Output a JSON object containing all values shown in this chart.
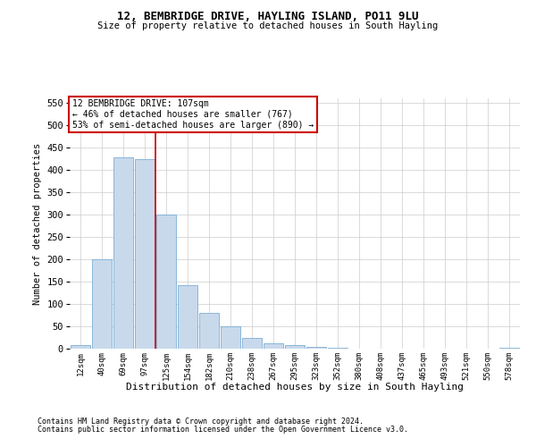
{
  "title": "12, BEMBRIDGE DRIVE, HAYLING ISLAND, PO11 9LU",
  "subtitle": "Size of property relative to detached houses in South Hayling",
  "xlabel": "Distribution of detached houses by size in South Hayling",
  "ylabel": "Number of detached properties",
  "footnote1": "Contains HM Land Registry data © Crown copyright and database right 2024.",
  "footnote2": "Contains public sector information licensed under the Open Government Licence v3.0.",
  "bar_labels": [
    "12sqm",
    "40sqm",
    "69sqm",
    "97sqm",
    "125sqm",
    "154sqm",
    "182sqm",
    "210sqm",
    "238sqm",
    "267sqm",
    "295sqm",
    "323sqm",
    "352sqm",
    "380sqm",
    "408sqm",
    "437sqm",
    "465sqm",
    "493sqm",
    "521sqm",
    "550sqm",
    "578sqm"
  ],
  "bar_values": [
    8,
    200,
    428,
    425,
    300,
    143,
    80,
    50,
    24,
    12,
    8,
    5,
    2,
    0,
    0,
    0,
    0,
    0,
    0,
    0,
    3
  ],
  "bar_color": "#c9d9ec",
  "bar_edge_color": "#7bafd4",
  "property_line_x": 3.5,
  "annotation_text": "12 BEMBRIDGE DRIVE: 107sqm\n← 46% of detached houses are smaller (767)\n53% of semi-detached houses are larger (890) →",
  "annotation_box_color": "#ffffff",
  "annotation_box_edge": "#cc0000",
  "line_color": "#cc0000",
  "ylim": [
    0,
    560
  ],
  "yticks": [
    0,
    50,
    100,
    150,
    200,
    250,
    300,
    350,
    400,
    450,
    500,
    550
  ],
  "background_color": "#ffffff",
  "grid_color": "#cccccc"
}
